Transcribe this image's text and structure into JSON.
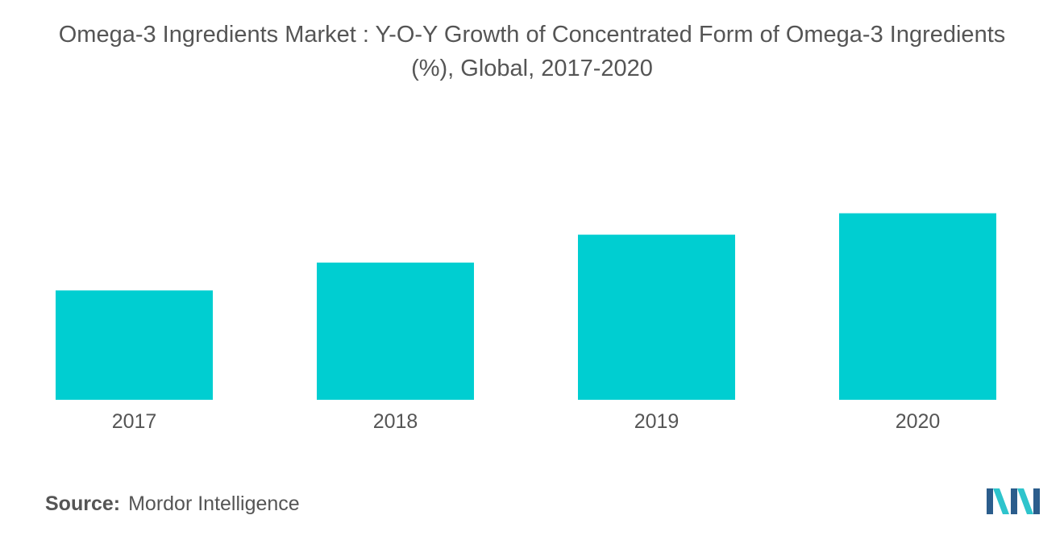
{
  "chart_data": {
    "type": "bar",
    "title_line1": "Omega-3 Ingredients Market : Y-O-Y Growth of Concentrated Form of Omega-3 Ingredients",
    "title_line2": "(%), Global, 2017-2020",
    "categories": [
      "2017",
      "2018",
      "2019",
      "2020"
    ],
    "values": [
      5.1,
      6.4,
      7.7,
      8.7
    ],
    "ylim": [
      0,
      10
    ],
    "grid": false,
    "legend": "none",
    "bar_color": "#00CED1"
  },
  "source": {
    "label": "Source:",
    "text": "Mordor Intelligence"
  },
  "colors": {
    "logo_dark": "#2B5D8C",
    "logo_light": "#2EC4CC"
  }
}
